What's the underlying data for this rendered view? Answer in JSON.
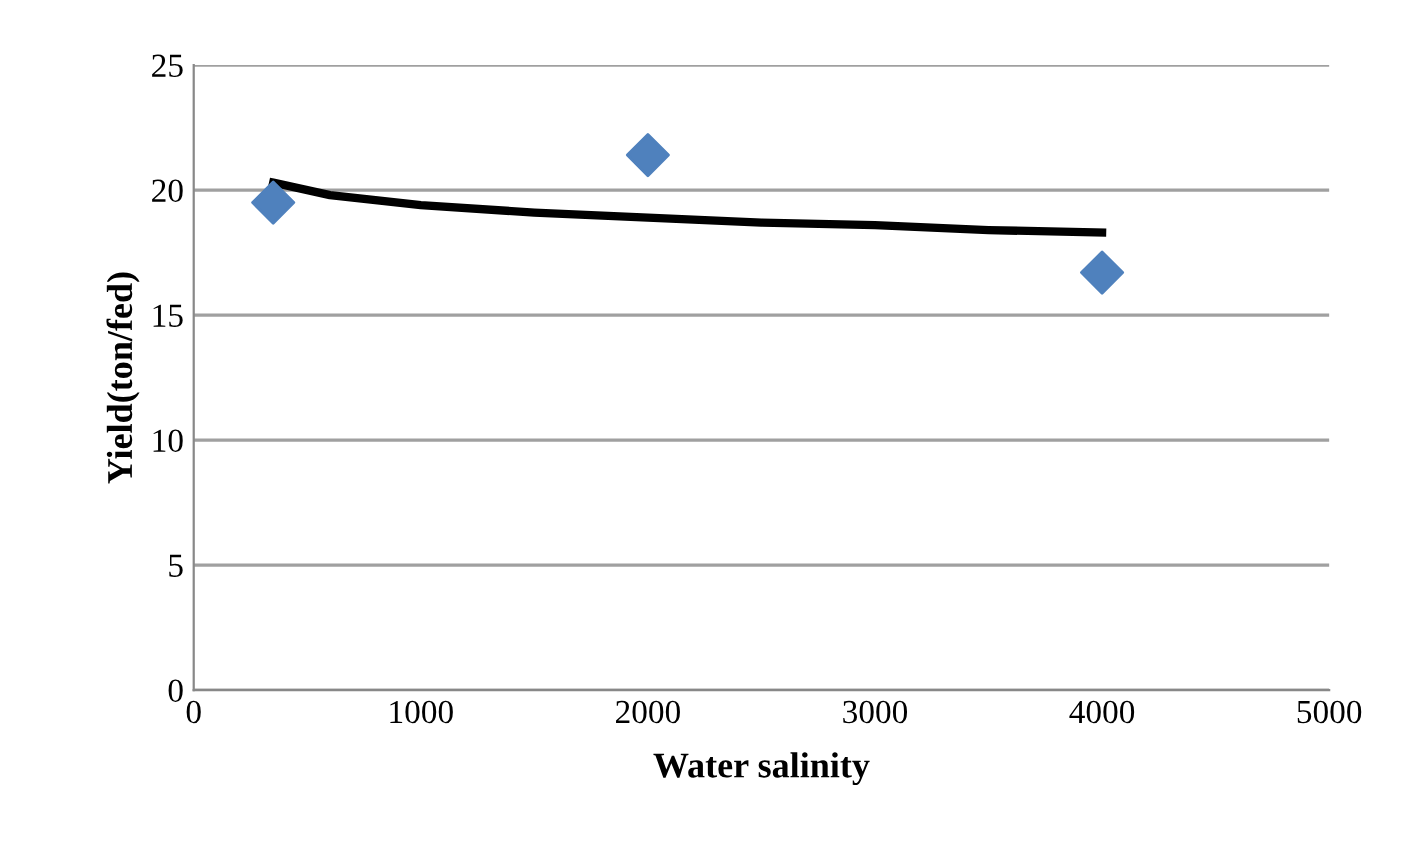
{
  "chart_data": {
    "type": "scatter",
    "xlabel": "Water salinity",
    "ylabel": "Yield(ton/fed)",
    "xlim": [
      0,
      5000
    ],
    "xticks": [
      0,
      1000,
      2000,
      3000,
      4000,
      5000
    ],
    "ylim": [
      0,
      25
    ],
    "yticks": [
      0,
      5,
      10,
      15,
      20,
      25
    ],
    "grid": "y",
    "series": [
      {
        "marker": "diamond",
        "color": "#4f81bd",
        "x": [
          350,
          2000,
          4000
        ],
        "values": [
          19.5,
          21.4,
          16.7
        ]
      },
      {
        "type": "line",
        "color": "#000000",
        "x": [
          350,
          600,
          1000,
          1500,
          2000,
          2500,
          3000,
          3500,
          4000
        ],
        "values": [
          20.3,
          19.8,
          19.4,
          19.1,
          18.9,
          18.7,
          18.6,
          18.4,
          18.3
        ]
      }
    ]
  }
}
